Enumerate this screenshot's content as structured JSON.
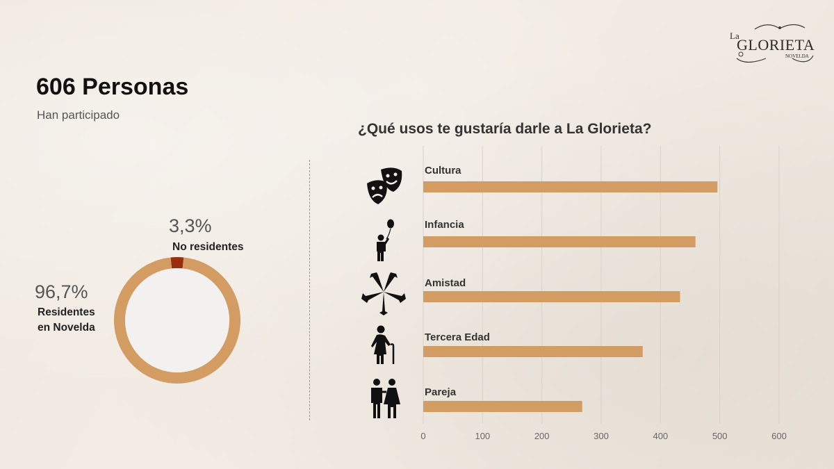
{
  "logo": {
    "top_text": "La",
    "name": "GLORIETA",
    "sub_text": "NOVELDA"
  },
  "summary": {
    "headline": "606 Personas",
    "subline": "Han participado"
  },
  "donut": {
    "segments": [
      {
        "pct_text": "3,3%",
        "label": "No residentes",
        "value": 3.3,
        "color": "#9b2d0f"
      },
      {
        "pct_text": "96,7%",
        "label_line1": "Residentes",
        "label_line2": "en Novelda",
        "value": 96.7,
        "color": "#d29c63"
      }
    ],
    "inner_color": "#f2f1ef"
  },
  "chart_data": {
    "type": "bar",
    "orientation": "horizontal",
    "title": "¿Qué usos te gustaría darle a La Glorieta?",
    "categories": [
      "Cultura",
      "Infancia",
      "Amistad",
      "Tercera Edad",
      "Pareja"
    ],
    "values": [
      496,
      459,
      433,
      370,
      268
    ],
    "xlim": [
      0,
      600
    ],
    "xticks": [
      0,
      100,
      200,
      300,
      400,
      500,
      600
    ],
    "grid": true,
    "bar_color": "#d29c63",
    "icons": [
      "theater-masks-icon",
      "child-balloon-icon",
      "hands-circle-icon",
      "elderly-cane-icon",
      "couple-icon"
    ]
  }
}
